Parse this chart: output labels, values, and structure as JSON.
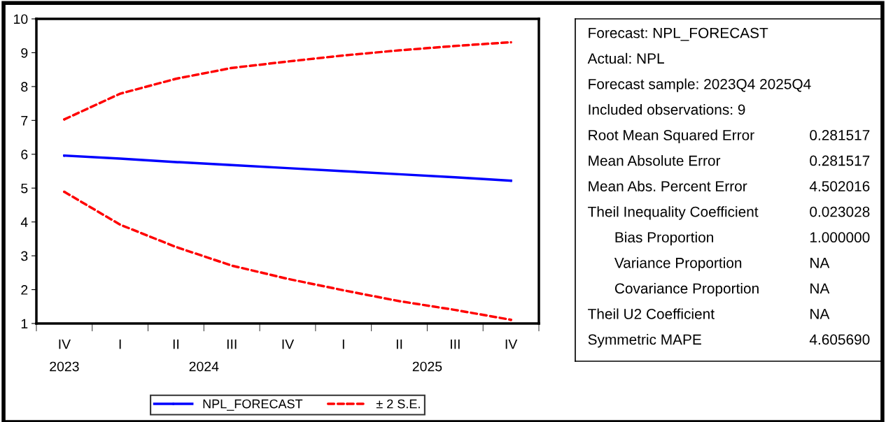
{
  "chart_data": [
    {
      "type": "line",
      "categories": [
        "IV",
        "I",
        "II",
        "III",
        "IV",
        "I",
        "II",
        "III",
        "IV"
      ],
      "series": [
        {
          "name": "NPL_FORECAST",
          "color": "#0000ff",
          "line_style": "solid",
          "values": [
            5.96,
            5.87,
            5.77,
            5.68,
            5.59,
            5.5,
            5.41,
            5.32,
            5.22
          ]
        },
        {
          "name": "± 2 S.E.",
          "color": "#ff0000",
          "line_style": "dashed",
          "values": [
            7.03,
            7.79,
            8.23,
            8.55,
            8.74,
            8.92,
            9.07,
            9.2,
            9.31
          ]
        },
        {
          "color": "#ff0000",
          "line_style": "dashed",
          "values": [
            4.89,
            3.92,
            3.26,
            2.71,
            2.32,
            1.98,
            1.66,
            1.4,
            1.11
          ]
        }
      ],
      "ylim": [
        1,
        10
      ],
      "yticks": [
        1,
        2,
        3,
        4,
        5,
        6,
        7,
        8,
        9,
        10
      ],
      "grid": false,
      "legend": "bottom",
      "annotations": [
        "2023",
        "2024",
        "2025"
      ]
    },
    {
      "type": "other",
      "categories": [
        "Forecast: NPL_FORECAST",
        "Actual: NPL",
        "Forecast sample: 2023Q4 2025Q4",
        "Included observations: 9",
        "Root Mean Squared Error",
        "Mean Absolute Error",
        "Mean Abs. Percent Error",
        "Theil Inequality Coefficient",
        "Bias Proportion",
        "Variance Proportion",
        "Covariance Proportion",
        "Theil U2 Coefficient",
        "Symmetric MAPE"
      ],
      "value_labels": [
        null,
        null,
        null,
        null,
        "0.281517",
        "0.281517",
        "4.502016",
        "0.023028",
        "1.000000",
        "NA",
        "NA",
        "NA",
        "4.605690"
      ]
    }
  ]
}
